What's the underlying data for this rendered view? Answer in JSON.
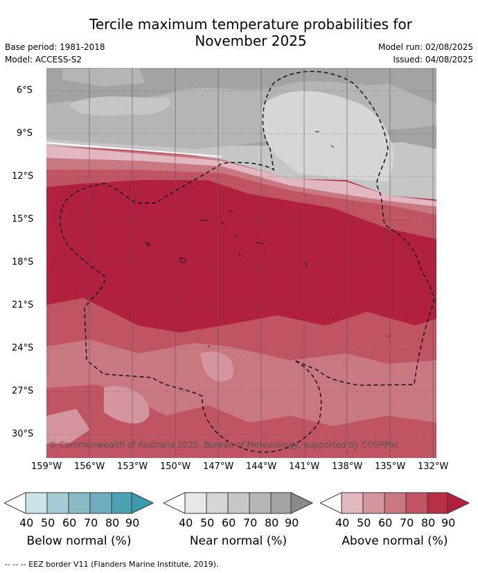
{
  "title_line1": "Tercile maximum temperature probabilities for",
  "title_line2": "November 2025",
  "meta_left": {
    "base_period": "Base period: 1981-2018",
    "model": "Model: ACCESS-S2"
  },
  "meta_right": {
    "model_run": "Model run: 02/08/2025",
    "issued": "Issued: 04/08/2025"
  },
  "copyright": "© Commonwealth of Australia 2025, Bureau of Meteorology, supported by COSPPac",
  "lat_labels": [
    "6°S",
    "9°S",
    "12°S",
    "15°S",
    "18°S",
    "21°S",
    "24°S",
    "27°S",
    "30°S"
  ],
  "lon_labels": [
    "159°W",
    "156°W",
    "153°W",
    "150°W",
    "147°W",
    "144°W",
    "141°W",
    "138°W",
    "135°W",
    "132°W"
  ],
  "legends": [
    {
      "title": "Below normal (%)",
      "ticks": [
        "40",
        "50",
        "60",
        "70",
        "80",
        "90"
      ],
      "colors": [
        "#ffffff",
        "#cae3e8",
        "#a6cdd5",
        "#88bac6",
        "#6eafbf",
        "#4aa2b3",
        "#3b9aac"
      ]
    },
    {
      "title": "Near normal (%)",
      "ticks": [
        "40",
        "50",
        "60",
        "70",
        "80",
        "90"
      ],
      "colors": [
        "#ffffff",
        "#e7e7e7",
        "#d6d6d6",
        "#c6c6c6",
        "#b5b5b5",
        "#a3a3a3",
        "#8a8a8a"
      ]
    },
    {
      "title": "Above normal (%)",
      "ticks": [
        "40",
        "50",
        "60",
        "70",
        "80",
        "90"
      ],
      "colors": [
        "#ffffff",
        "#e2b7bf",
        "#d4959e",
        "#c97882",
        "#c05462",
        "#b62f47",
        "#b2203f"
      ]
    }
  ],
  "footer": "--  --  -- EEZ border V11 (Flanders Marine Institute, 2019)."
}
